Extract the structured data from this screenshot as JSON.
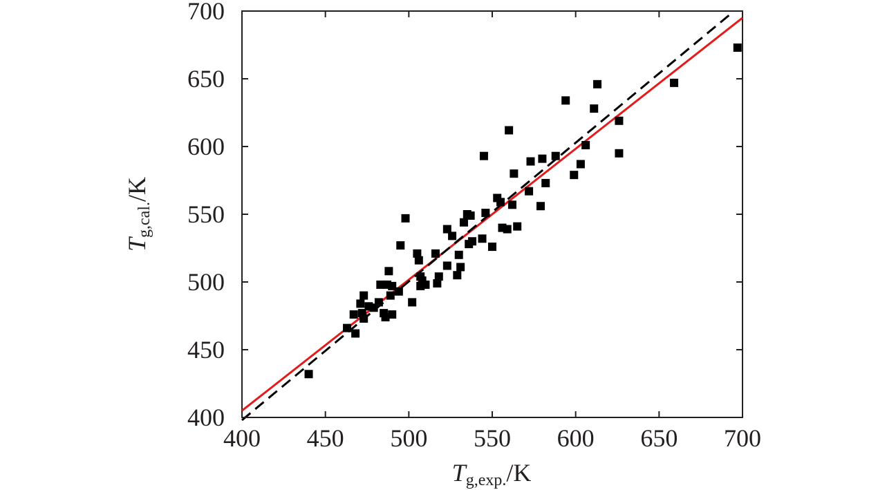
{
  "chart_data": {
    "type": "scatter",
    "xlabel": {
      "main": "T",
      "sub": "g,exp.",
      "unit": "/K"
    },
    "ylabel": {
      "main": "T",
      "sub": "g,cal.",
      "unit": "/K"
    },
    "xlim": [
      400,
      700
    ],
    "ylim": [
      400,
      700
    ],
    "xticks": [
      "400",
      "450",
      "500",
      "550",
      "600",
      "650",
      "700"
    ],
    "yticks": [
      "400",
      "450",
      "500",
      "550",
      "600",
      "650",
      "700"
    ],
    "grid": false,
    "legend": "none",
    "colors": {
      "points": "#000000",
      "fit": "#e21b1b",
      "reference": "#000000",
      "axis": "#231f20"
    },
    "series": [
      {
        "type": "scatter",
        "marker": "square",
        "points": [
          [
            440,
            432
          ],
          [
            463,
            466
          ],
          [
            467,
            476
          ],
          [
            468,
            462
          ],
          [
            471,
            484
          ],
          [
            472,
            477
          ],
          [
            473,
            473
          ],
          [
            473,
            490
          ],
          [
            476,
            482
          ],
          [
            479,
            481
          ],
          [
            482,
            485
          ],
          [
            483,
            498
          ],
          [
            485,
            477
          ],
          [
            486,
            474
          ],
          [
            487,
            498
          ],
          [
            488,
            508
          ],
          [
            489,
            490
          ],
          [
            490,
            476
          ],
          [
            490,
            497
          ],
          [
            494,
            493
          ],
          [
            495,
            527
          ],
          [
            498,
            547
          ],
          [
            502,
            485
          ],
          [
            505,
            521
          ],
          [
            506,
            516
          ],
          [
            507,
            497
          ],
          [
            507,
            504
          ],
          [
            508,
            501
          ],
          [
            510,
            498
          ],
          [
            516,
            521
          ],
          [
            517,
            499
          ],
          [
            518,
            504
          ],
          [
            523,
            512
          ],
          [
            523,
            539
          ],
          [
            526,
            534
          ],
          [
            529,
            505
          ],
          [
            530,
            520
          ],
          [
            531,
            511
          ],
          [
            533,
            544
          ],
          [
            535,
            550
          ],
          [
            536,
            528
          ],
          [
            537,
            549
          ],
          [
            538,
            530
          ],
          [
            544,
            532
          ],
          [
            545,
            593
          ],
          [
            546,
            551
          ],
          [
            550,
            526
          ],
          [
            553,
            562
          ],
          [
            555,
            559
          ],
          [
            556,
            540
          ],
          [
            559,
            539
          ],
          [
            560,
            612
          ],
          [
            562,
            557
          ],
          [
            563,
            580
          ],
          [
            565,
            541
          ],
          [
            572,
            567
          ],
          [
            573,
            589
          ],
          [
            579,
            556
          ],
          [
            580,
            591
          ],
          [
            582,
            573
          ],
          [
            588,
            593
          ],
          [
            594,
            634
          ],
          [
            599,
            579
          ],
          [
            603,
            587
          ],
          [
            606,
            601
          ],
          [
            611,
            628
          ],
          [
            613,
            646
          ],
          [
            626,
            619
          ],
          [
            626,
            595
          ],
          [
            659,
            647
          ],
          [
            697,
            673
          ]
        ]
      },
      {
        "type": "line",
        "role": "linear-fit",
        "style": "solid",
        "points": [
          [
            400,
            405
          ],
          [
            700,
            695
          ]
        ]
      },
      {
        "type": "line",
        "role": "y-equals-x",
        "style": "dashed",
        "points": [
          [
            400,
            398
          ],
          [
            693,
            698
          ]
        ]
      }
    ]
  }
}
